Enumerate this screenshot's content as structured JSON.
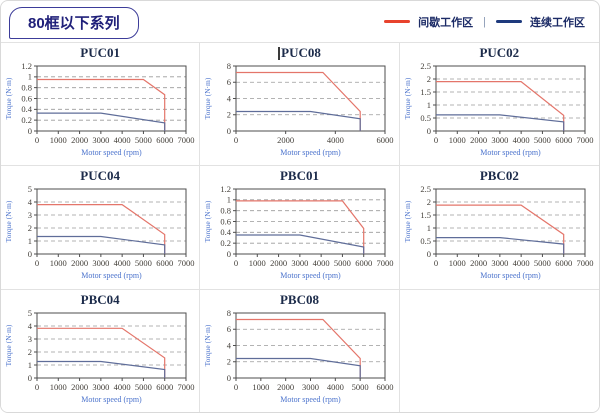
{
  "header": {
    "badge_label": "80框以下系列"
  },
  "legend": {
    "items": [
      {
        "label": "间歇工作区",
        "color_key": "red"
      },
      {
        "label": "连续工作区",
        "color_key": "blue"
      }
    ],
    "separator": "|"
  },
  "colors": {
    "legend_red": "#e8432d",
    "legend_blue": "#1e3a7d",
    "curve_red": "#e4756a",
    "curve_blue": "#5f6d99",
    "grid": "#9a9a9a",
    "plot_border": "#4d4d4d",
    "tick_text": "#44403a",
    "axis_label": "#4a72cc",
    "title_text": "#1c2b4a"
  },
  "axis_labels": {
    "x": "Motor speed (rpm)",
    "y": "Torque (N·m)"
  },
  "chart_data": [
    {
      "type": "line",
      "title": "PUC01",
      "title_cursor": false,
      "xlabel": "Motor speed (rpm)",
      "ylabel": "Torque (N·m)",
      "xlim": [
        0,
        7000
      ],
      "xtick_step": 1000,
      "ylim": [
        0,
        1.2
      ],
      "ytick_step": 0.2,
      "grid": "dashed-horizontal",
      "legend_position": "none",
      "series": [
        {
          "name": "间歇工作区",
          "color": "red",
          "points": [
            [
              0,
              0.95
            ],
            [
              5000,
              0.95
            ],
            [
              6000,
              0.67
            ],
            [
              6000,
              0
            ]
          ]
        },
        {
          "name": "连续工作区",
          "color": "blue",
          "points": [
            [
              0,
              0.33
            ],
            [
              3000,
              0.33
            ],
            [
              6000,
              0.15
            ],
            [
              6000,
              0
            ]
          ]
        }
      ]
    },
    {
      "type": "line",
      "title": "PUC08",
      "title_cursor": true,
      "xlabel": "Motor speed (rpm)",
      "ylabel": "Torque (N·m)",
      "xlim": [
        0,
        6000
      ],
      "xtick_step": 2000,
      "ylim": [
        0,
        8
      ],
      "ytick_step": 2,
      "grid": "dashed-horizontal",
      "legend_position": "none",
      "series": [
        {
          "name": "间歇工作区",
          "color": "red",
          "points": [
            [
              0,
              7.2
            ],
            [
              3500,
              7.2
            ],
            [
              5000,
              2.4
            ],
            [
              5000,
              0
            ]
          ]
        },
        {
          "name": "连续工作区",
          "color": "blue",
          "points": [
            [
              0,
              2.4
            ],
            [
              3000,
              2.4
            ],
            [
              5000,
              1.5
            ],
            [
              5000,
              0
            ]
          ]
        }
      ]
    },
    {
      "type": "line",
      "title": "PUC02",
      "title_cursor": false,
      "xlabel": "Motor speed (rpm)",
      "ylabel": "Torque (N·m)",
      "xlim": [
        0,
        7000
      ],
      "xtick_step": 1000,
      "ylim": [
        0,
        2.5
      ],
      "ytick_step": 0.5,
      "grid": "dashed-horizontal",
      "legend_position": "none",
      "series": [
        {
          "name": "间歇工作区",
          "color": "red",
          "points": [
            [
              0,
              1.9
            ],
            [
              4000,
              1.9
            ],
            [
              6000,
              0.6
            ],
            [
              6000,
              0
            ]
          ]
        },
        {
          "name": "连续工作区",
          "color": "blue",
          "points": [
            [
              0,
              0.62
            ],
            [
              3000,
              0.62
            ],
            [
              6000,
              0.35
            ],
            [
              6000,
              0
            ]
          ]
        }
      ]
    },
    {
      "type": "line",
      "title": "PUC04",
      "title_cursor": false,
      "xlabel": "Motor speed (rpm)",
      "ylabel": "Torque (N·m)",
      "xlim": [
        0,
        7000
      ],
      "xtick_step": 1000,
      "ylim": [
        0,
        5
      ],
      "ytick_step": 1,
      "grid": "dashed-horizontal",
      "legend_position": "none",
      "series": [
        {
          "name": "间歇工作区",
          "color": "red",
          "points": [
            [
              0,
              3.8
            ],
            [
              4000,
              3.8
            ],
            [
              6000,
              1.5
            ],
            [
              6000,
              0
            ]
          ]
        },
        {
          "name": "连续工作区",
          "color": "blue",
          "points": [
            [
              0,
              1.35
            ],
            [
              3000,
              1.35
            ],
            [
              6000,
              0.7
            ],
            [
              6000,
              0
            ]
          ]
        }
      ]
    },
    {
      "type": "line",
      "title": "PBC01",
      "title_cursor": false,
      "xlabel": "Motor speed (rpm)",
      "ylabel": "Torque (N·m)",
      "xlim": [
        0,
        7000
      ],
      "xtick_step": 1000,
      "ylim": [
        0,
        1.2
      ],
      "ytick_step": 0.2,
      "grid": "dashed-horizontal",
      "legend_position": "none",
      "series": [
        {
          "name": "间歇工作区",
          "color": "red",
          "points": [
            [
              0,
              0.98
            ],
            [
              5000,
              0.98
            ],
            [
              6000,
              0.47
            ],
            [
              6000,
              0
            ]
          ]
        },
        {
          "name": "连续工作区",
          "color": "blue",
          "points": [
            [
              0,
              0.35
            ],
            [
              3000,
              0.35
            ],
            [
              6000,
              0.13
            ],
            [
              6000,
              0
            ]
          ]
        }
      ]
    },
    {
      "type": "line",
      "title": "PBC02",
      "title_cursor": false,
      "xlabel": "Motor speed (rpm)",
      "ylabel": "Torque (N·m)",
      "xlim": [
        0,
        7000
      ],
      "xtick_step": 1000,
      "ylim": [
        0,
        2.5
      ],
      "ytick_step": 0.5,
      "grid": "dashed-horizontal",
      "legend_position": "none",
      "series": [
        {
          "name": "间歇工作区",
          "color": "red",
          "points": [
            [
              0,
              1.88
            ],
            [
              4000,
              1.88
            ],
            [
              6000,
              0.75
            ],
            [
              6000,
              0
            ]
          ]
        },
        {
          "name": "连续工作区",
          "color": "blue",
          "points": [
            [
              0,
              0.63
            ],
            [
              3000,
              0.63
            ],
            [
              6000,
              0.38
            ],
            [
              6000,
              0
            ]
          ]
        }
      ]
    },
    {
      "type": "line",
      "title": "PBC04",
      "title_cursor": false,
      "xlabel": "Motor speed (rpm)",
      "ylabel": "Torque (N·m)",
      "xlim": [
        0,
        7000
      ],
      "xtick_step": 1000,
      "ylim": [
        0,
        5
      ],
      "ytick_step": 1,
      "grid": "dashed-horizontal",
      "legend_position": "none",
      "series": [
        {
          "name": "间歇工作区",
          "color": "red",
          "points": [
            [
              0,
              3.82
            ],
            [
              4000,
              3.82
            ],
            [
              6000,
              1.55
            ],
            [
              6000,
              0
            ]
          ]
        },
        {
          "name": "连续工作区",
          "color": "blue",
          "points": [
            [
              0,
              1.27
            ],
            [
              3000,
              1.27
            ],
            [
              6000,
              0.65
            ],
            [
              6000,
              0
            ]
          ]
        }
      ]
    },
    {
      "type": "line",
      "title": "PBC08",
      "title_cursor": false,
      "xlabel": "Motor speed (rpm)",
      "ylabel": "Torque (N·m)",
      "xlim": [
        0,
        6000
      ],
      "xtick_step": 1000,
      "ylim": [
        0,
        8
      ],
      "ytick_step": 2,
      "grid": "dashed-horizontal",
      "legend_position": "none",
      "series": [
        {
          "name": "间歇工作区",
          "color": "red",
          "points": [
            [
              0,
              7.2
            ],
            [
              3500,
              7.2
            ],
            [
              5000,
              2.4
            ],
            [
              5000,
              0
            ]
          ]
        },
        {
          "name": "连续工作区",
          "color": "blue",
          "points": [
            [
              0,
              2.4
            ],
            [
              3000,
              2.4
            ],
            [
              5000,
              1.5
            ],
            [
              5000,
              0
            ]
          ]
        }
      ]
    }
  ]
}
